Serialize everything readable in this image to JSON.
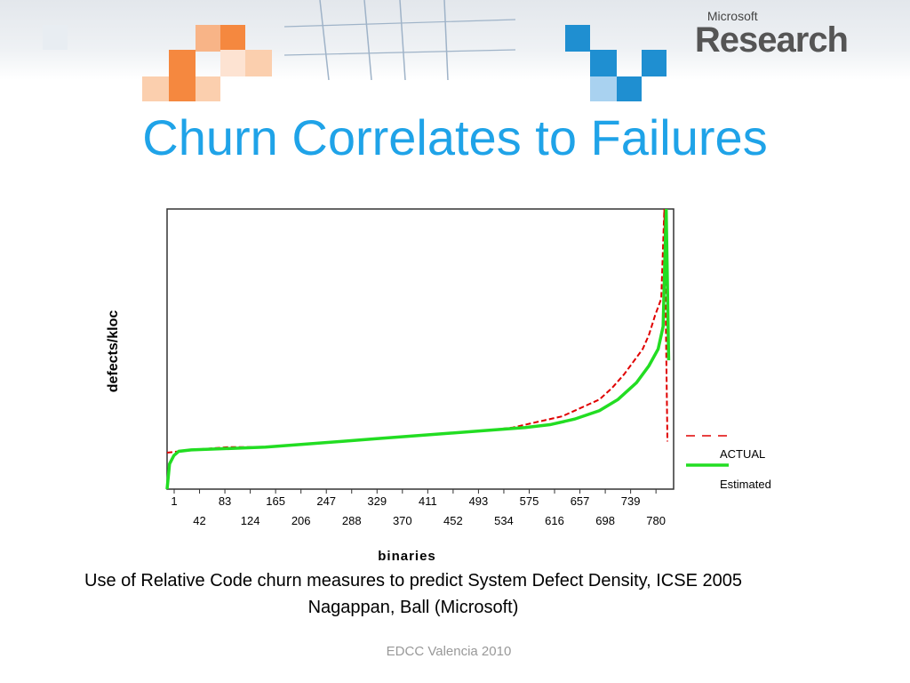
{
  "slide": {
    "title": "Churn Correlates to Failures",
    "caption_line1": "Use of Relative Code churn measures to predict System Defect Density, ICSE 2005",
    "caption_line2": "Nagappan, Ball (Microsoft)",
    "footer": "EDCC Valencia 2010"
  },
  "logo": {
    "small": "Microsoft",
    "big": "Research"
  },
  "colors": {
    "title": "#1fa3e8",
    "actual": "#e00000",
    "estimated": "#22dd22",
    "orange": "#f5883f",
    "blue": "#1f8fd1"
  },
  "chart_data": {
    "type": "line",
    "xlabel": "binaries",
    "ylabel": "defects/kloc",
    "xlim": [
      1,
      820
    ],
    "tick_labels_top": [
      "1",
      "83",
      "165",
      "247",
      "329",
      "411",
      "493",
      "575",
      "657",
      "739"
    ],
    "tick_labels_bottom": [
      "42",
      "124",
      "206",
      "288",
      "370",
      "452",
      "534",
      "616",
      "698",
      "780"
    ],
    "series": [
      {
        "name": "ACTUAL",
        "style": "dashed",
        "x": [
          1,
          40,
          100,
          160,
          220,
          280,
          340,
          400,
          460,
          520,
          560,
          600,
          620,
          640,
          660,
          680,
          700,
          720,
          740,
          760,
          770,
          780,
          790,
          800,
          805,
          810
        ],
        "y": [
          0.13,
          0.14,
          0.15,
          0.15,
          0.16,
          0.17,
          0.18,
          0.19,
          0.2,
          0.21,
          0.22,
          0.24,
          0.25,
          0.26,
          0.28,
          0.3,
          0.32,
          0.36,
          0.41,
          0.47,
          0.5,
          0.55,
          0.62,
          0.68,
          1.0,
          0.17
        ]
      },
      {
        "name": "Estimated",
        "style": "solid",
        "x": [
          1,
          5,
          12,
          20,
          40,
          100,
          160,
          220,
          280,
          340,
          400,
          460,
          520,
          580,
          620,
          660,
          700,
          730,
          760,
          780,
          795,
          803,
          808,
          812
        ],
        "y": [
          0.0,
          0.09,
          0.12,
          0.135,
          0.14,
          0.145,
          0.15,
          0.16,
          0.17,
          0.18,
          0.19,
          0.2,
          0.21,
          0.22,
          0.23,
          0.25,
          0.28,
          0.32,
          0.38,
          0.44,
          0.5,
          0.58,
          1.0,
          0.46
        ]
      }
    ],
    "legend": "right"
  }
}
